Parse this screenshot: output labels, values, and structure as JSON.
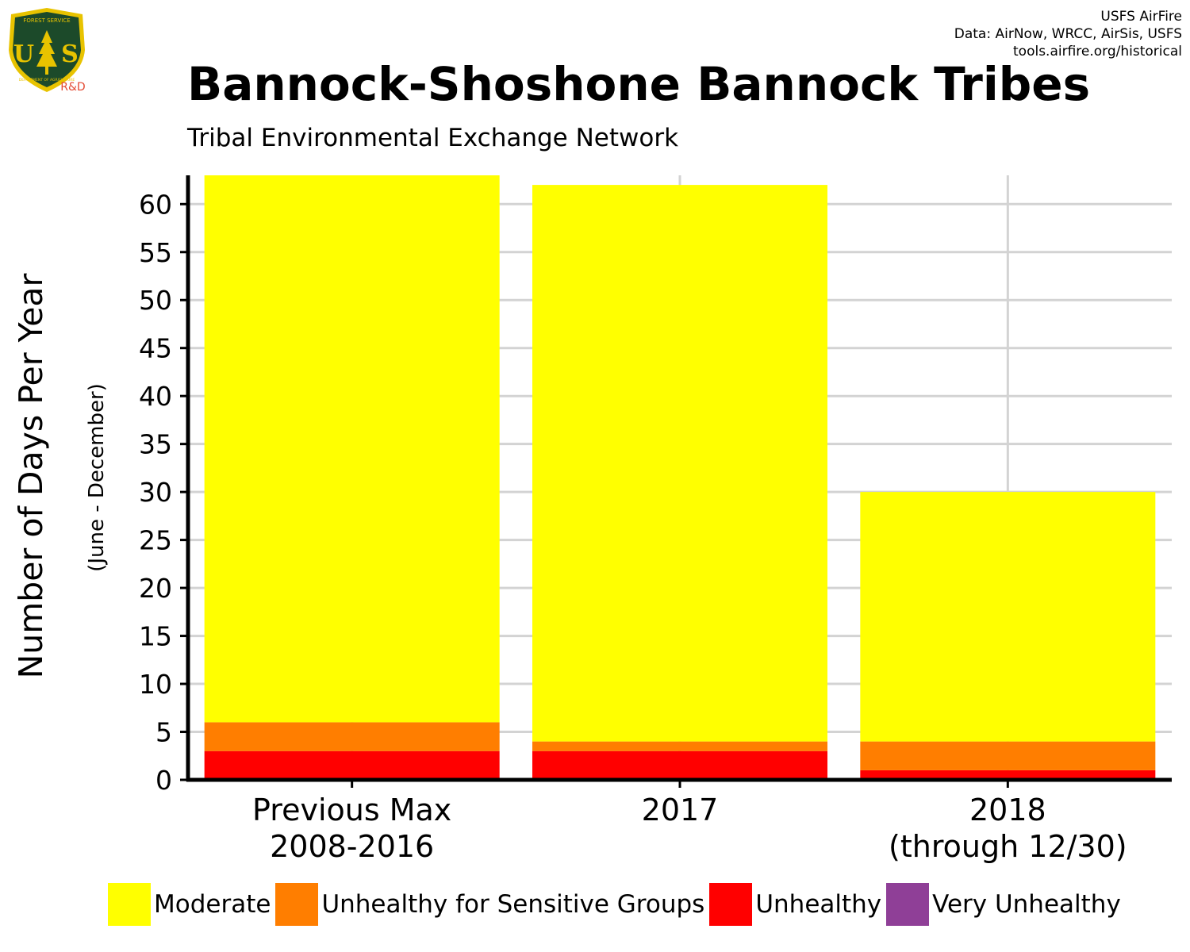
{
  "header": {
    "credit_lines": [
      "USFS AirFire",
      "Data: AirNow, WRCC, AirSis, USFS",
      "tools.airfire.org/historical"
    ],
    "logo": {
      "icon": "forest-service-shield-icon",
      "initials_left": "U",
      "initials_right": "S",
      "ring_top": "FOREST SERVICE",
      "ring_bottom": "DEPARTMENT OF AGRICULTURE",
      "tag": "R&D",
      "colors": {
        "shield": "#1c4a2a",
        "trim": "#e8c300",
        "tag": "#e34a33"
      }
    }
  },
  "chart_data": {
    "type": "bar",
    "stacked": true,
    "title": "Bannock-Shoshone Bannock Tribes",
    "subtitle": "Tribal Environmental Exchange Network",
    "ylabel": "Number of Days Per Year",
    "ylabel_secondary": "(June - December)",
    "xlabel": "",
    "ylim": [
      0,
      63
    ],
    "yticks": [
      0,
      5,
      10,
      15,
      20,
      25,
      30,
      35,
      40,
      45,
      50,
      55,
      60
    ],
    "grid": true,
    "legend_position": "bottom",
    "categories": [
      [
        "Previous Max",
        "2008-2016"
      ],
      [
        "2017"
      ],
      [
        "2018",
        "(through 12/30)"
      ]
    ],
    "series": [
      {
        "name": "Very Unhealthy",
        "color": "#8f3f97",
        "values": [
          0,
          0,
          0
        ]
      },
      {
        "name": "Unhealthy",
        "color": "#ff0000",
        "values": [
          3,
          3,
          1
        ]
      },
      {
        "name": "Unhealthy for Sensitive Groups",
        "color": "#ff7e00",
        "values": [
          3,
          1,
          3
        ]
      },
      {
        "name": "Moderate",
        "color": "#ffff00",
        "values": [
          57,
          58,
          26
        ]
      }
    ],
    "legend_order": [
      "Moderate",
      "Unhealthy for Sensitive Groups",
      "Unhealthy",
      "Very Unhealthy"
    ]
  }
}
